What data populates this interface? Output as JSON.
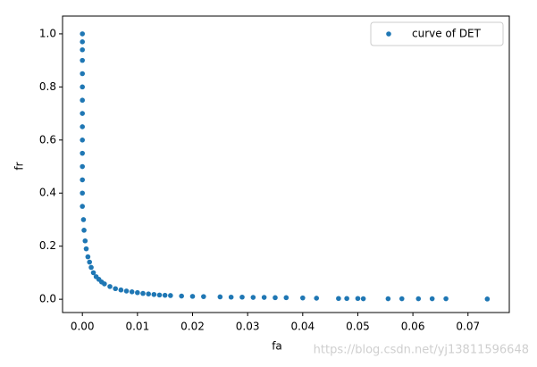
{
  "chart_data": {
    "type": "scatter",
    "xlabel": "fa",
    "ylabel": "fr",
    "x": [
      0,
      0,
      0,
      0,
      0,
      0,
      0,
      0,
      0,
      0,
      0,
      0,
      0,
      0,
      0,
      0.0002,
      0.0003,
      0.0005,
      0.0007,
      0.001,
      0.0013,
      0.0016,
      0.002,
      0.0025,
      0.003,
      0.0035,
      0.004,
      0.005,
      0.006,
      0.007,
      0.008,
      0.009,
      0.01,
      0.011,
      0.012,
      0.013,
      0.014,
      0.015,
      0.016,
      0.018,
      0.02,
      0.022,
      0.025,
      0.027,
      0.029,
      0.031,
      0.033,
      0.035,
      0.037,
      0.04,
      0.0425,
      0.0465,
      0.048,
      0.05,
      0.051,
      0.0555,
      0.058,
      0.061,
      0.0635,
      0.066,
      0.0735
    ],
    "series": [
      {
        "name": "curve of DET",
        "color": "#1f77b4",
        "values": [
          1.0,
          0.97,
          0.94,
          0.9,
          0.85,
          0.8,
          0.75,
          0.7,
          0.65,
          0.6,
          0.55,
          0.5,
          0.45,
          0.4,
          0.35,
          0.3,
          0.26,
          0.22,
          0.19,
          0.16,
          0.14,
          0.12,
          0.1,
          0.085,
          0.075,
          0.065,
          0.058,
          0.048,
          0.04,
          0.035,
          0.031,
          0.028,
          0.025,
          0.022,
          0.02,
          0.018,
          0.016,
          0.015,
          0.014,
          0.012,
          0.011,
          0.01,
          0.009,
          0.008,
          0.008,
          0.007,
          0.007,
          0.006,
          0.006,
          0.005,
          0.004,
          0.003,
          0.003,
          0.003,
          0.002,
          0.002,
          0.002,
          0.002,
          0.002,
          0.002,
          0.001
        ]
      }
    ],
    "xlim": [
      -0.0036,
      0.0775
    ],
    "ylim": [
      -0.05,
      1.067
    ],
    "xticks": [
      {
        "value": 0,
        "label": "0.00"
      },
      {
        "value": 0.01,
        "label": "0.01"
      },
      {
        "value": 0.02,
        "label": "0.02"
      },
      {
        "value": 0.03,
        "label": "0.03"
      },
      {
        "value": 0.04,
        "label": "0.04"
      },
      {
        "value": 0.05,
        "label": "0.05"
      },
      {
        "value": 0.06,
        "label": "0.06"
      },
      {
        "value": 0.07,
        "label": "0.07"
      }
    ],
    "yticks": [
      {
        "value": 0,
        "label": "0.0"
      },
      {
        "value": 0.2,
        "label": "0.2"
      },
      {
        "value": 0.4,
        "label": "0.4"
      },
      {
        "value": 0.6,
        "label": "0.6"
      },
      {
        "value": 0.8,
        "label": "0.8"
      },
      {
        "value": 1,
        "label": "1.0"
      }
    ],
    "legend": "upper right",
    "watermark": "https://blog.csdn.net/yj13811596648"
  }
}
